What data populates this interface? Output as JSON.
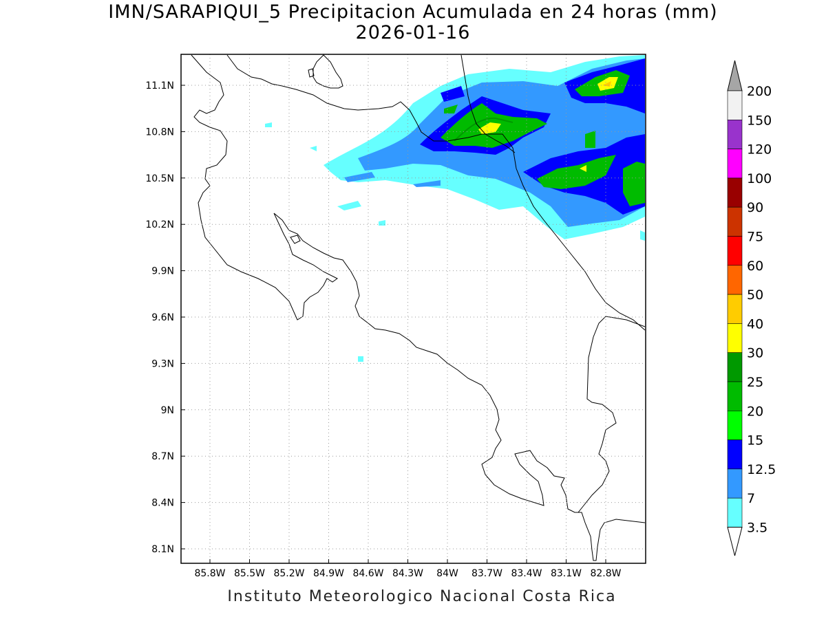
{
  "title": "IMN/SARAPIQUI_5 Precipitacion Acumulada en 24 horas (mm)",
  "date": "2026-01-16",
  "footer": "Instituto Meteorologico Nacional Costa Rica",
  "map": {
    "lon_ticks": [
      "85.8W",
      "85.5W",
      "85.2W",
      "84.9W",
      "84.6W",
      "84.3W",
      "84W",
      "83.7W",
      "83.4W",
      "83.1W",
      "82.8W"
    ],
    "lat_ticks": [
      "11.1N",
      "10.8N",
      "10.5N",
      "10.2N",
      "9.9N",
      "9.6N",
      "9.3N",
      "9N",
      "8.7N",
      "8.4N",
      "8.1N"
    ]
  },
  "colorbar": {
    "labels": [
      "200",
      "150",
      "120",
      "100",
      "90",
      "75",
      "60",
      "50",
      "40",
      "30",
      "25",
      "20",
      "15",
      "12.5",
      "7",
      "3.5"
    ],
    "colors": [
      "#f2f2f2",
      "#9933cc",
      "#ff00ff",
      "#990000",
      "#cc3300",
      "#ff0000",
      "#ff6600",
      "#ffcc00",
      "#ffff00",
      "#009900",
      "#00bb00",
      "#00ff00",
      "#0000ff",
      "#3399ff",
      "#66ffff"
    ],
    "top_triangle_color": "#a6a6a6",
    "bottom_triangle_color": "#ffffff"
  }
}
